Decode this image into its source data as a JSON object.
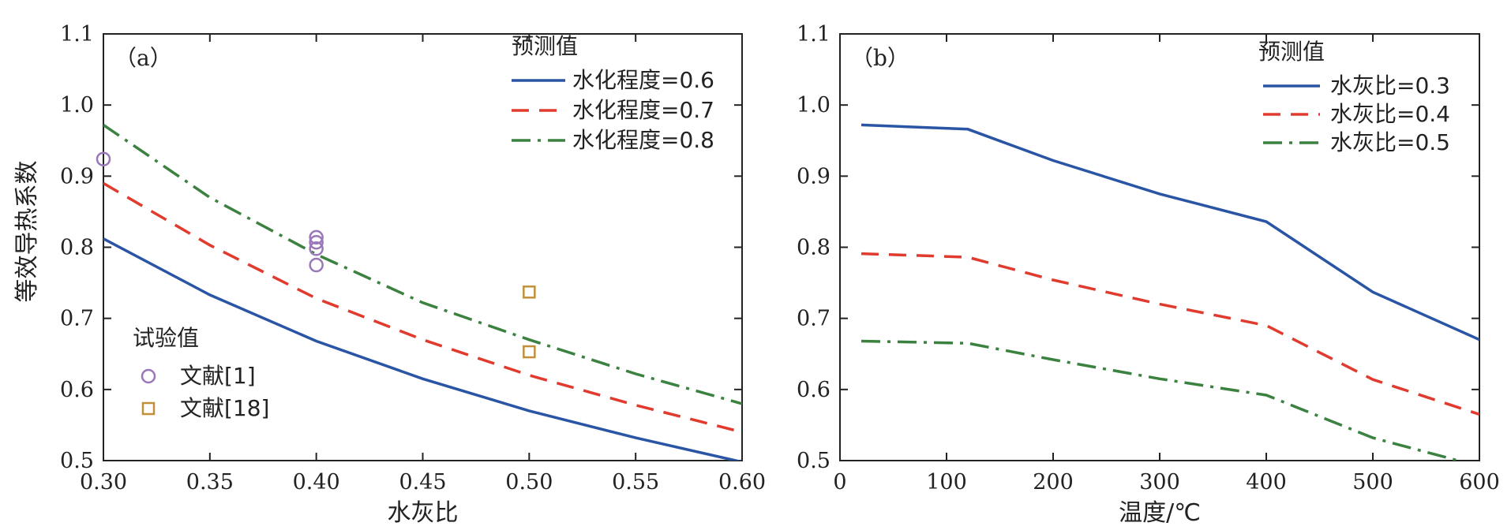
{
  "chart_data": [
    {
      "type": "line",
      "panel_label": "（a）",
      "xlabel": "水灰比",
      "ylabel": "等效导热系数",
      "xlim": [
        0.3,
        0.6
      ],
      "ylim": [
        0.5,
        1.1
      ],
      "xticks": [
        "0.30",
        "0.35",
        "0.40",
        "0.45",
        "0.50",
        "0.55",
        "0.60"
      ],
      "yticks": [
        "0.5",
        "0.6",
        "0.7",
        "0.8",
        "0.9",
        "1.0",
        "1.1"
      ],
      "legend_title": "预测值",
      "series": [
        {
          "name": "水化程度=0.6",
          "style": "solid",
          "color": "#2a55a5",
          "x": [
            0.3,
            0.35,
            0.4,
            0.45,
            0.5,
            0.55,
            0.6
          ],
          "y": [
            0.812,
            0.733,
            0.668,
            0.615,
            0.57,
            0.532,
            0.498
          ]
        },
        {
          "name": "水化程度=0.7",
          "style": "dashed",
          "color": "#e03b2e",
          "x": [
            0.3,
            0.35,
            0.4,
            0.45,
            0.5,
            0.55,
            0.6
          ],
          "y": [
            0.89,
            0.803,
            0.728,
            0.67,
            0.62,
            0.578,
            0.54
          ]
        },
        {
          "name": "水化程度=0.8",
          "style": "dashdot",
          "color": "#3b8140",
          "x": [
            0.3,
            0.35,
            0.4,
            0.45,
            0.5,
            0.55,
            0.6
          ],
          "y": [
            0.972,
            0.87,
            0.79,
            0.722,
            0.67,
            0.622,
            0.58
          ]
        }
      ],
      "scatter_legend_title": "试验值",
      "scatter": [
        {
          "name": "文献[1]",
          "marker": "circle",
          "color": "#9a78b8",
          "x": [
            0.3,
            0.4,
            0.4,
            0.4,
            0.4
          ],
          "y": [
            0.924,
            0.814,
            0.807,
            0.798,
            0.775
          ]
        },
        {
          "name": "文献[18]",
          "marker": "square",
          "color": "#c2903a",
          "x": [
            0.5,
            0.5
          ],
          "y": [
            0.737,
            0.653
          ]
        }
      ]
    },
    {
      "type": "line",
      "panel_label": "（b）",
      "xlabel": "温度/℃",
      "ylabel": "",
      "xlim": [
        0,
        600
      ],
      "ylim": [
        0.5,
        1.1
      ],
      "xticks": [
        "0",
        "100",
        "200",
        "300",
        "400",
        "500",
        "600"
      ],
      "yticks": [
        "0.5",
        "0.6",
        "0.7",
        "0.8",
        "0.9",
        "1.0",
        "1.1"
      ],
      "legend_title": "预测值",
      "series": [
        {
          "name": "水灰比=0.3",
          "style": "solid",
          "color": "#2a55a5",
          "x": [
            20,
            120,
            200,
            300,
            400,
            500,
            600
          ],
          "y": [
            0.972,
            0.966,
            0.922,
            0.875,
            0.836,
            0.737,
            0.67
          ]
        },
        {
          "name": "水灰比=0.4",
          "style": "dashed",
          "color": "#e03b2e",
          "x": [
            20,
            120,
            200,
            300,
            400,
            500,
            600
          ],
          "y": [
            0.791,
            0.786,
            0.754,
            0.72,
            0.69,
            0.614,
            0.565
          ]
        },
        {
          "name": "水灰比=0.5",
          "style": "dashdot",
          "color": "#3b8140",
          "x": [
            20,
            120,
            200,
            300,
            400,
            500,
            580
          ],
          "y": [
            0.668,
            0.665,
            0.642,
            0.615,
            0.592,
            0.532,
            0.5
          ]
        }
      ]
    }
  ]
}
